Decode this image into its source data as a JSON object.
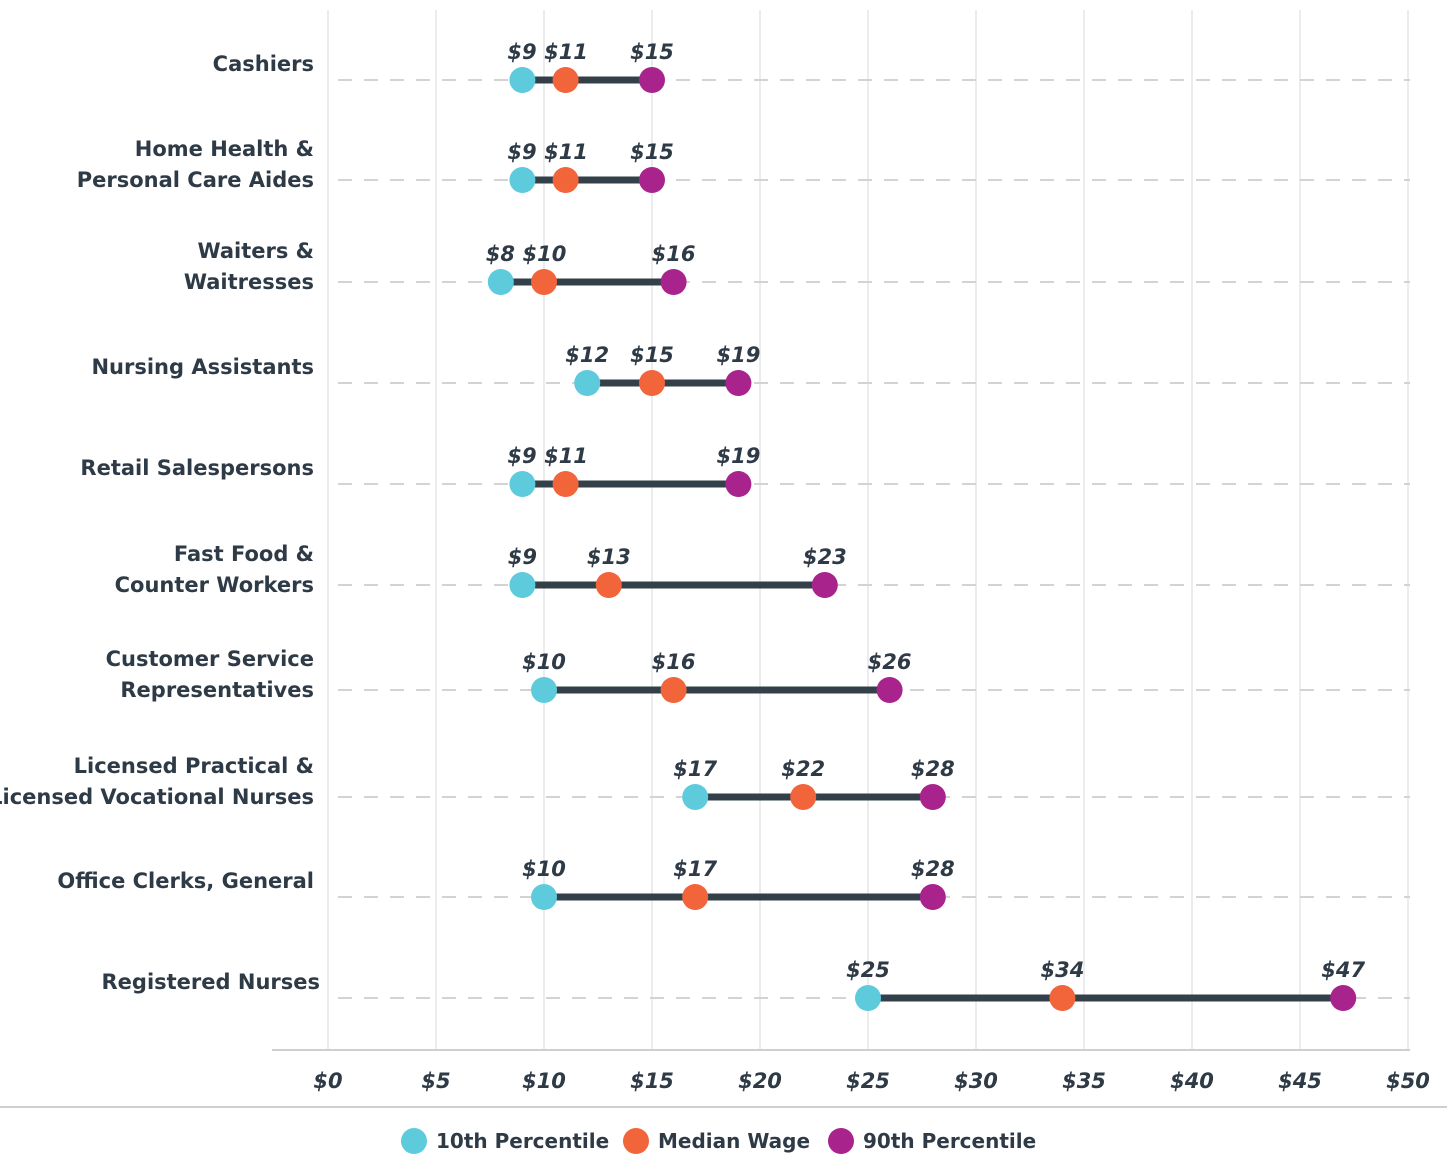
{
  "chart_data": {
    "type": "dumbbell",
    "title": "",
    "xlabel": "",
    "ylabel": "",
    "xlim": [
      0,
      50
    ],
    "x_ticks": [
      "$0",
      "$5",
      "$10",
      "$15",
      "$20",
      "$25",
      "$30",
      "$35",
      "$40",
      "$45",
      "$50"
    ],
    "x_tick_values": [
      0,
      5,
      10,
      15,
      20,
      25,
      30,
      35,
      40,
      45,
      50
    ],
    "grid": true,
    "legend_position": "bottom-center",
    "categories": [
      [
        "Cashiers"
      ],
      [
        "Home Health &",
        "Personal Care Aides"
      ],
      [
        "Waiters &",
        "Waitresses"
      ],
      [
        "Nursing Assistants"
      ],
      [
        "Retail Salespersons"
      ],
      [
        "Fast Food &",
        "Counter Workers"
      ],
      [
        "Customer Service",
        "Representatives"
      ],
      [
        "Licensed Practical &",
        "Licensed Vocational Nurses"
      ],
      [
        "Office Clerks, General"
      ],
      [
        "Registered Nurses"
      ]
    ],
    "series": [
      {
        "name": "10th Percentile",
        "color": "#5ecbdc",
        "values": [
          9,
          9,
          8,
          12,
          9,
          9,
          10,
          17,
          10,
          25
        ],
        "labels": [
          "$9",
          "$9",
          "$8",
          "$12",
          "$9",
          "$9",
          "$10",
          "$17",
          "$10",
          "$25"
        ]
      },
      {
        "name": "Median Wage",
        "color": "#f2643a",
        "values": [
          11,
          11,
          10,
          15,
          11,
          13,
          16,
          22,
          17,
          34
        ],
        "labels": [
          "$11",
          "$11",
          "$10",
          "$15",
          "$11",
          "$13",
          "$16",
          "$22",
          "$17",
          "$34"
        ]
      },
      {
        "name": "90th Percentile",
        "color": "#a9238d",
        "values": [
          15,
          15,
          16,
          19,
          19,
          23,
          26,
          28,
          28,
          47
        ],
        "labels": [
          "$15",
          "$15",
          "$16",
          "$19",
          "$19",
          "$23",
          "$26",
          "$28",
          "$28",
          "$47"
        ]
      }
    ],
    "colors": {
      "range_line": "#33404a",
      "grid": "#e6e6e6",
      "dashed_row_line": "#d3d3d3",
      "axis": "#cfcfcf",
      "text": "#2e3a46"
    }
  }
}
